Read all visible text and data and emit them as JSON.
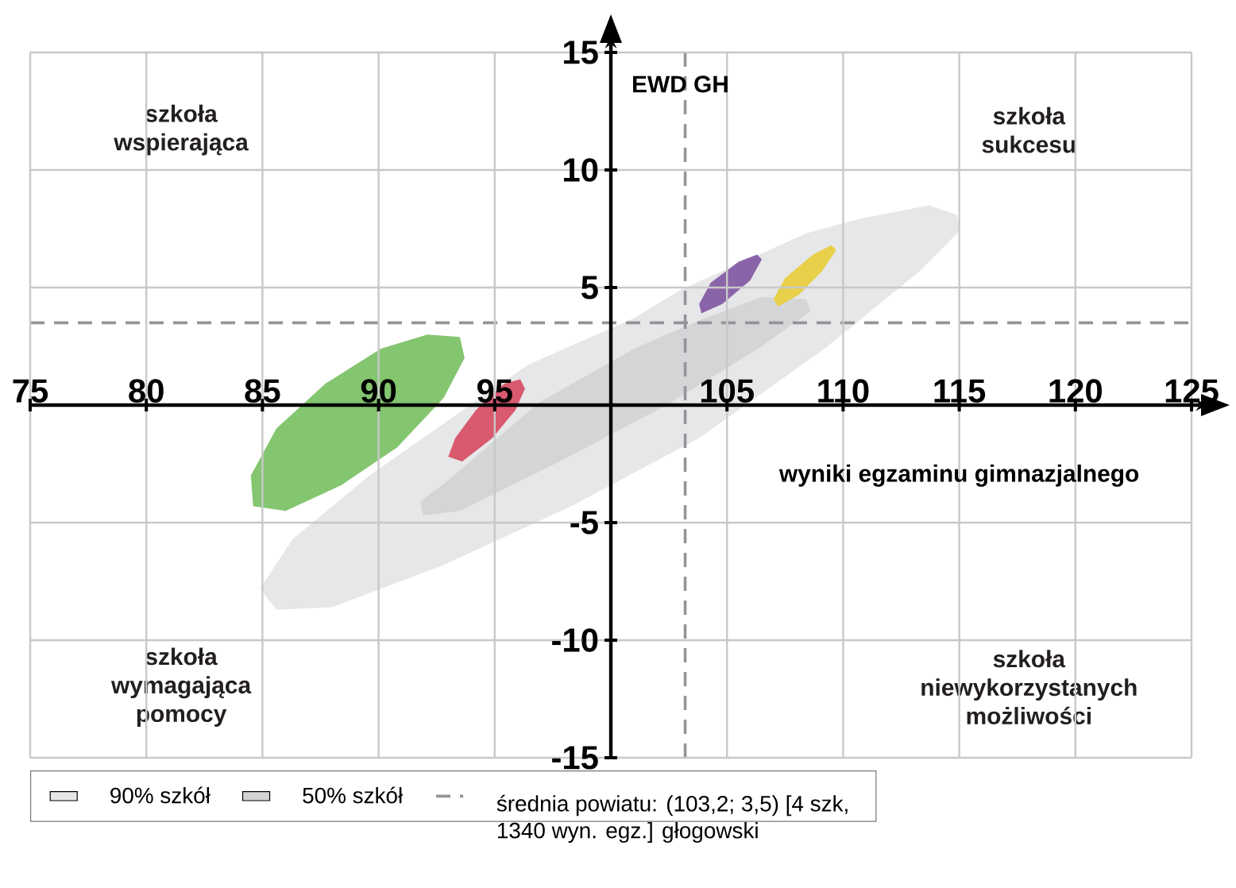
{
  "chart_data": {
    "type": "area",
    "xlabel": "wyniki egzaminu gimnazjalnego",
    "ylabel": "EWD GH",
    "annotations": [
      "szkoła wspierająca",
      "szkoła sukcesu",
      "szkoła wymagająca pomocy",
      "szkoła niewykorzystanych możliwości"
    ],
    "xlim": [
      75,
      125
    ],
    "ylim": [
      -15,
      15
    ],
    "xticks": [
      75,
      80,
      85,
      90,
      95,
      105,
      110,
      115,
      120,
      125
    ],
    "yticks": [
      15,
      10,
      5,
      -5,
      -10,
      -15
    ],
    "grid": true,
    "legend": "bottom",
    "series": [
      {
        "name": "90% szkół",
        "color": "#e6e7e8",
        "x": [
          114.9,
          113.7,
          110.6,
          108.4,
          103.0,
          101.0,
          96.4,
          89.6,
          86.3,
          84.9,
          85.6,
          88.0,
          92.8,
          98.3,
          103.8,
          109.2,
          113.3,
          115.0
        ],
        "values": [
          8.1,
          8.5,
          7.9,
          7.3,
          4.9,
          3.7,
          1.7,
          -3.0,
          -5.7,
          -7.8,
          -8.7,
          -8.6,
          -6.8,
          -4.3,
          -1.4,
          2.4,
          5.7,
          7.4
        ]
      },
      {
        "name": "50% szkół",
        "color": "#d4d5d7",
        "x": [
          108.4,
          106.5,
          103.8,
          101.0,
          96.9,
          93.0,
          91.8,
          91.9,
          93.5,
          97.6,
          102.4,
          106.5,
          108.6
        ],
        "values": [
          4.5,
          4.6,
          3.6,
          2.4,
          0.1,
          -3.2,
          -4.1,
          -4.7,
          -4.5,
          -2.5,
          0.0,
          2.5,
          4.0
        ]
      },
      {
        "color": "#84c56f",
        "x": [
          93.5,
          92.1,
          90.1,
          87.7,
          85.6,
          84.5,
          84.6,
          86.0,
          88.4,
          90.8,
          92.8,
          93.7
        ],
        "values": [
          2.9,
          3.0,
          2.4,
          0.9,
          -1.0,
          -3.0,
          -4.3,
          -4.5,
          -3.4,
          -1.8,
          0.3,
          2.0
        ]
      },
      {
        "color": "#d9596f",
        "x": [
          96.1,
          95.4,
          94.2,
          93.3,
          93.0,
          93.6,
          94.9,
          95.9,
          96.3
        ],
        "values": [
          1.1,
          0.9,
          -0.2,
          -1.4,
          -2.2,
          -2.4,
          -1.4,
          -0.2,
          0.7
        ]
      },
      {
        "color": "#8a64a8",
        "x": [
          106.3,
          105.5,
          104.3,
          103.8,
          103.9,
          104.8,
          106.0,
          106.5
        ],
        "values": [
          6.4,
          6.1,
          5.2,
          4.3,
          3.9,
          4.3,
          5.3,
          6.2
        ]
      },
      {
        "color": "#e8d04a",
        "x": [
          109.5,
          108.7,
          107.5,
          107.0,
          107.2,
          108.1,
          109.1,
          109.7
        ],
        "values": [
          6.8,
          6.4,
          5.4,
          4.5,
          4.2,
          4.7,
          5.7,
          6.6
        ]
      }
    ],
    "ref_lines": [
      {
        "axis": "x",
        "value": 103.2,
        "label": "średnia powiatu: (103,2; 3,5) [4 szk, 1340 wyn. egz.] głogowski",
        "color": "#939598",
        "line_style": "dashed"
      },
      {
        "axis": "y",
        "value": 3.5,
        "color": "#939598",
        "line_style": "dashed"
      }
    ]
  }
}
